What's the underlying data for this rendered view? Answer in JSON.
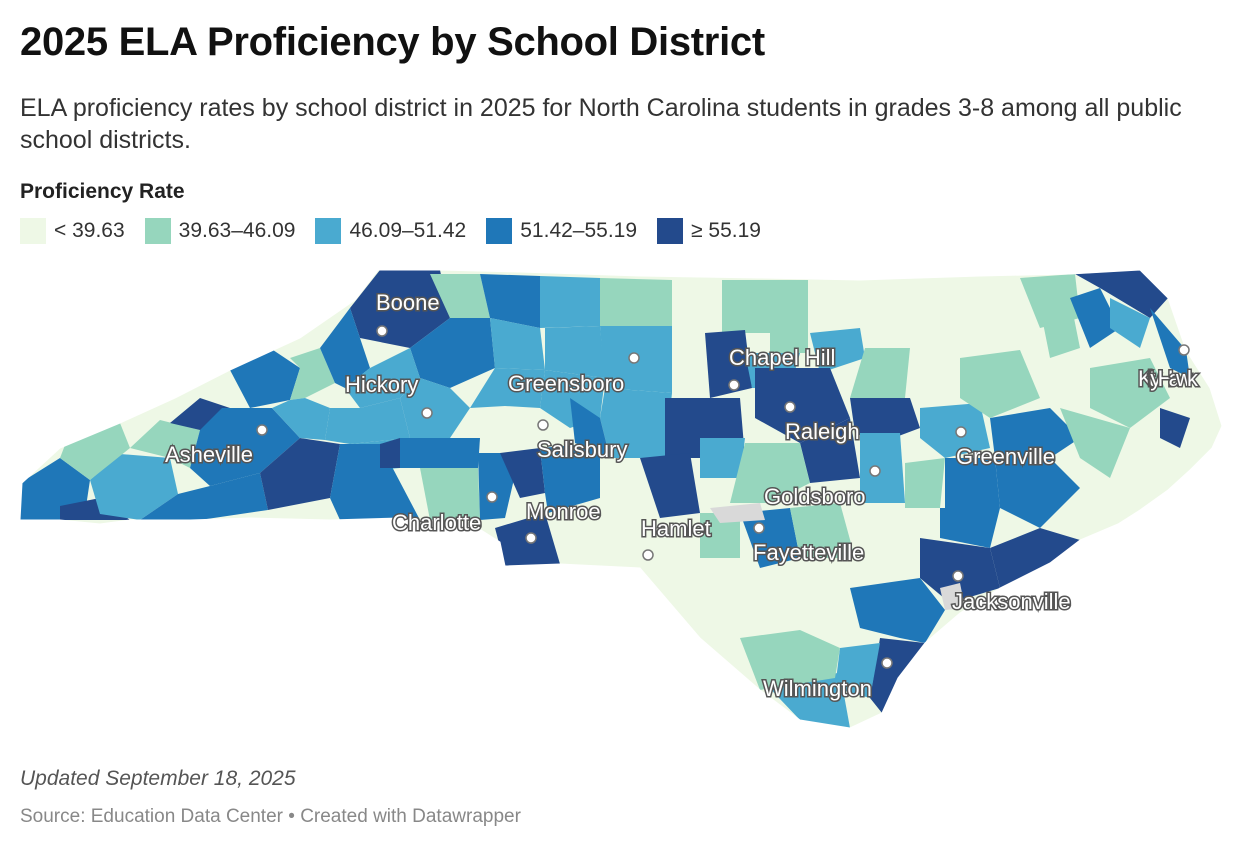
{
  "header": {
    "title": "2025 ELA Proficiency by School District",
    "subtitle": "ELA proficiency rates by school district in 2025 for North Carolina students in grades 3-8 among all public school districts."
  },
  "legend": {
    "title": "Proficiency Rate",
    "items": [
      {
        "label": "< 39.63",
        "color": "#eef8e6"
      },
      {
        "label": "39.63–46.09",
        "color": "#96d6bd"
      },
      {
        "label": "46.09–51.42",
        "color": "#4aaad0"
      },
      {
        "label": "51.42–55.19",
        "color": "#1f77b8"
      },
      {
        "label": "≥ 55.19",
        "color": "#234a8c"
      }
    ]
  },
  "map": {
    "colors": {
      "no_data": "#d9d9d9",
      "border": "#ffffff"
    },
    "cities": [
      "Boone",
      "Chapel Hill",
      "Hickory",
      "Greensboro",
      "Kitty Hawk",
      "Asheville",
      "Salisbury",
      "Raleigh",
      "Greenville",
      "Goldsboro",
      "Charlotte",
      "Monroe",
      "Hamlet",
      "Fayetteville",
      "Jacksonville",
      "Wilmington"
    ]
  },
  "footer": {
    "note": "Updated September 18, 2025",
    "source": "Source: Education Data Center • Created with Datawrapper"
  }
}
